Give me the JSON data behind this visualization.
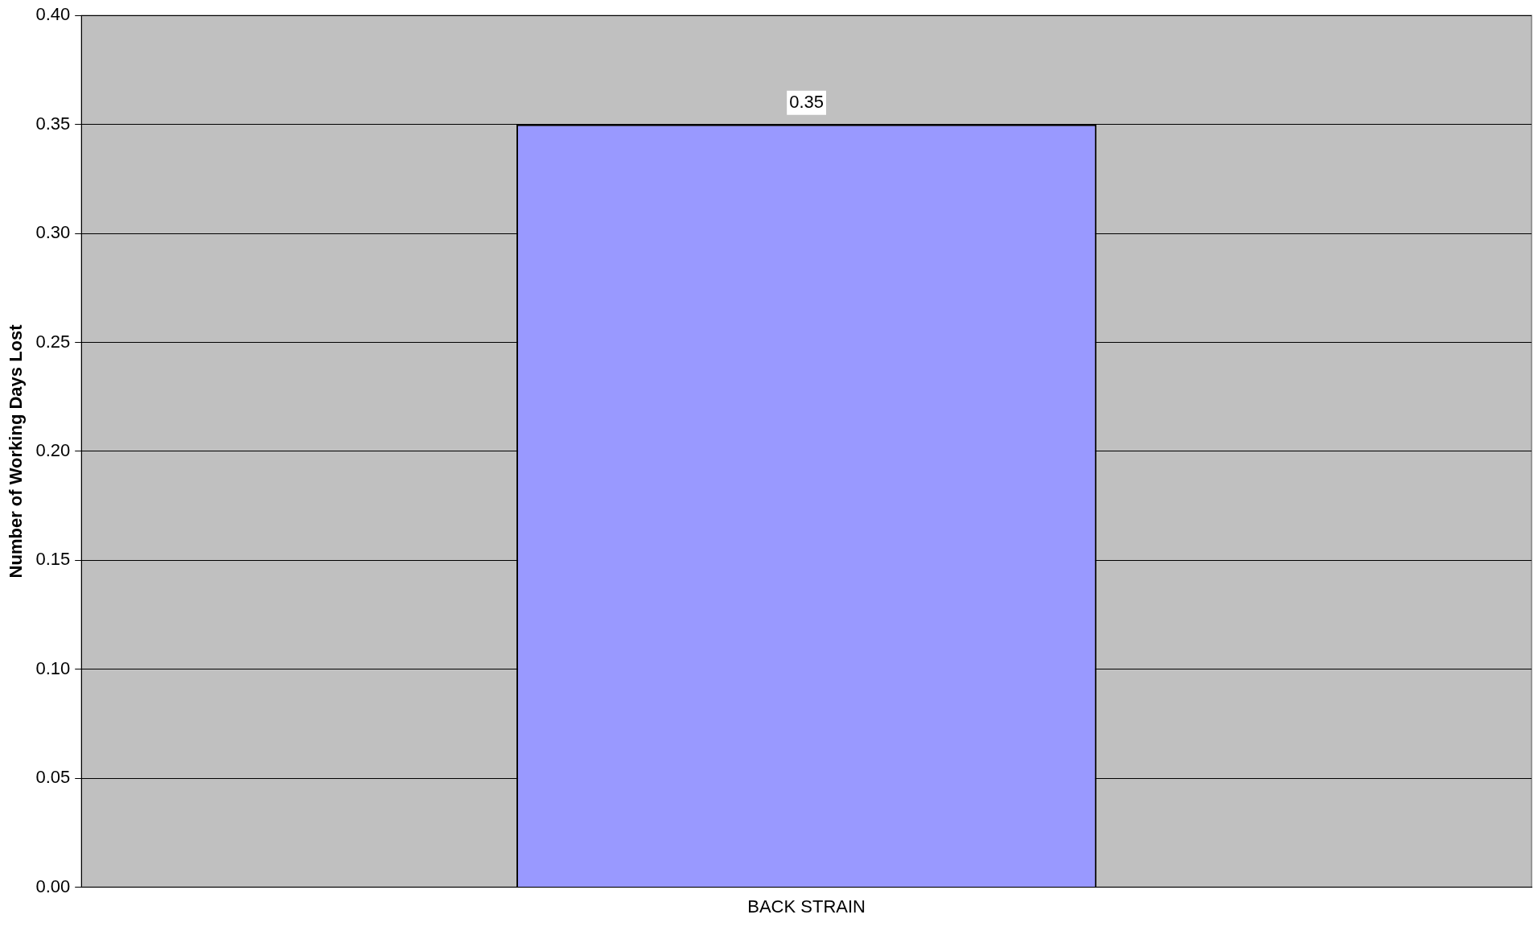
{
  "chart_data": {
    "type": "bar",
    "ylabel": "Number of Working Days Lost",
    "categories": [
      "BACK STRAIN"
    ],
    "values": [
      0.35
    ],
    "color": "#9999ff",
    "ylim": [
      0,
      0.4
    ],
    "yticks": [
      {
        "value": 0,
        "label": "0.00"
      },
      {
        "value": 0.05,
        "label": "0.05"
      },
      {
        "value": 0.1,
        "label": "0.10"
      },
      {
        "value": 0.15,
        "label": "0.15"
      },
      {
        "value": 0.2,
        "label": "0.20"
      },
      {
        "value": 0.25,
        "label": "0.25"
      },
      {
        "value": 0.3,
        "label": "0.30"
      },
      {
        "value": 0.35,
        "label": "0.35"
      },
      {
        "value": 0.4,
        "label": "0.40"
      }
    ],
    "grid": "y",
    "data_labels": true,
    "legend": false
  }
}
